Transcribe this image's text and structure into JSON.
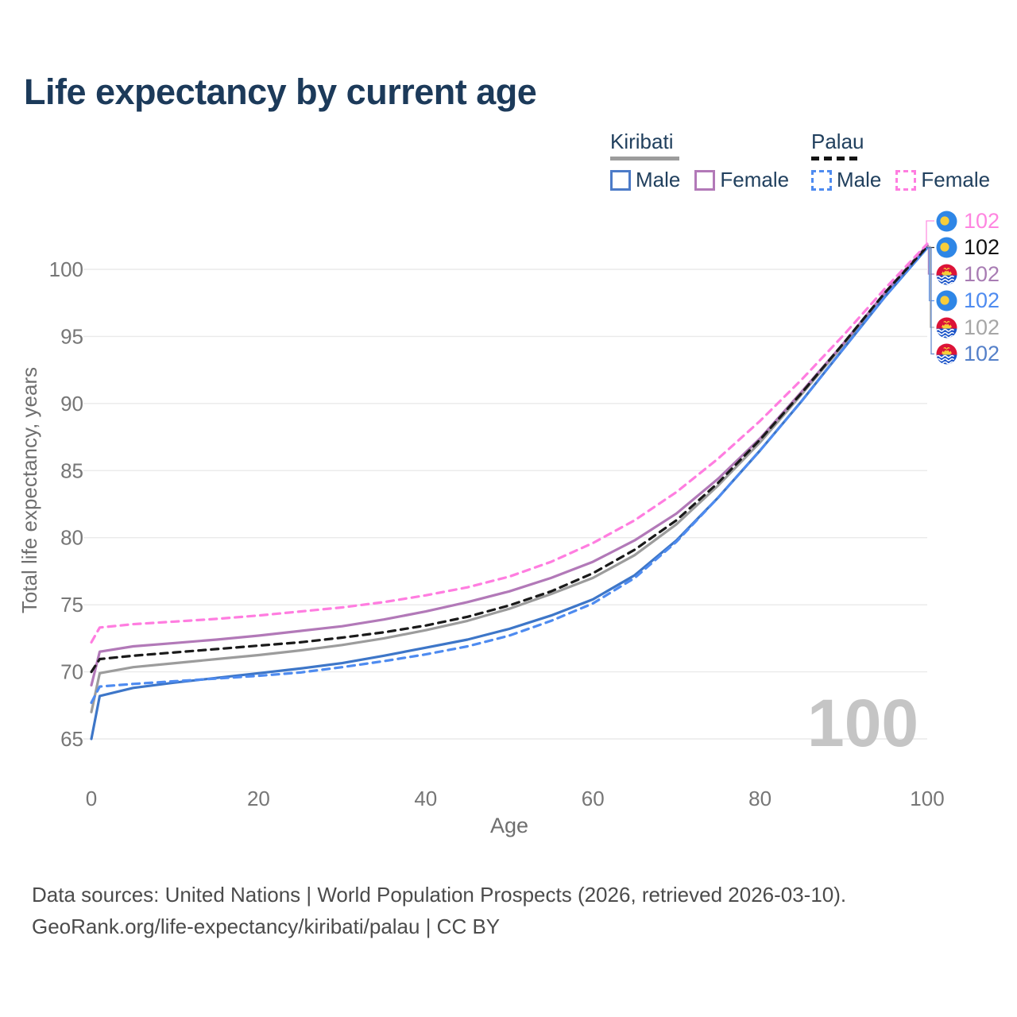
{
  "title": "Life expectancy by current age",
  "legend": {
    "groups": [
      {
        "name": "Kiribati",
        "line_style": "solid",
        "underline_color": "#9c9c9c",
        "items": [
          {
            "label": "Male",
            "color": "#4c7bc8"
          },
          {
            "label": "Female",
            "color": "#b279b8"
          }
        ]
      },
      {
        "name": "Palau",
        "line_style": "dashed",
        "underline_color": "#141414",
        "items": [
          {
            "label": "Male",
            "color": "#4e8bf0"
          },
          {
            "label": "Female",
            "color": "#ff7de0"
          }
        ]
      }
    ]
  },
  "chart_data": {
    "type": "line",
    "title": "Life expectancy by current age",
    "xlabel": "Age",
    "ylabel": "Total life expectancy, years",
    "x_ticks": [
      0,
      20,
      40,
      60,
      80,
      100
    ],
    "y_ticks": [
      65,
      70,
      75,
      80,
      85,
      90,
      95,
      100
    ],
    "xlim": [
      0,
      100
    ],
    "ylim": [
      63.5,
      103
    ],
    "grid": "horizontal",
    "legend_position": "top-right",
    "current_age_watermark": "100",
    "x": [
      0,
      1,
      5,
      10,
      15,
      20,
      25,
      30,
      35,
      40,
      45,
      50,
      55,
      60,
      65,
      70,
      75,
      80,
      85,
      90,
      95,
      100
    ],
    "series": [
      {
        "id": "kiribati-all",
        "name": "Kiribati",
        "country": "Kiribati",
        "sex": "All",
        "color": "#9c9c9c",
        "dash": false,
        "values": [
          67.0,
          69.9,
          70.35,
          70.65,
          70.95,
          71.25,
          71.6,
          72.0,
          72.5,
          73.1,
          73.8,
          74.7,
          75.8,
          77.0,
          78.7,
          81.0,
          83.9,
          87.1,
          90.7,
          94.4,
          98.2,
          101.7
        ]
      },
      {
        "id": "kiribati-female",
        "name": "Kiribati Female",
        "country": "Kiribati",
        "sex": "Female",
        "color": "#b279b8",
        "dash": false,
        "values": [
          69.0,
          71.5,
          71.9,
          72.15,
          72.4,
          72.7,
          73.05,
          73.4,
          73.9,
          74.5,
          75.2,
          76.0,
          77.0,
          78.2,
          79.8,
          81.8,
          84.4,
          87.4,
          90.9,
          94.5,
          98.3,
          101.8
        ]
      },
      {
        "id": "kiribati-male",
        "name": "Kiribati Male",
        "country": "Kiribati",
        "sex": "Male",
        "color": "#3d76c8",
        "dash": false,
        "values": [
          65.0,
          68.2,
          68.8,
          69.2,
          69.55,
          69.9,
          70.25,
          70.65,
          71.2,
          71.8,
          72.4,
          73.2,
          74.2,
          75.4,
          77.2,
          79.8,
          83.0,
          86.5,
          90.2,
          94.1,
          98.0,
          101.6
        ]
      },
      {
        "id": "palau-male",
        "name": "Palau Male",
        "country": "Palau",
        "sex": "Male",
        "color": "#4e8bf0",
        "dash": true,
        "values": [
          67.7,
          68.9,
          69.1,
          69.3,
          69.5,
          69.7,
          69.95,
          70.35,
          70.8,
          71.3,
          71.9,
          72.7,
          73.8,
          75.1,
          77.0,
          79.7,
          83.0,
          86.5,
          90.2,
          94.1,
          98.0,
          101.6
        ]
      },
      {
        "id": "palau-all",
        "name": "Palau",
        "country": "Palau",
        "sex": "All",
        "color": "#1a1a1a",
        "dash": true,
        "values": [
          70.0,
          70.95,
          71.2,
          71.45,
          71.7,
          71.95,
          72.2,
          72.55,
          72.95,
          73.45,
          74.1,
          74.95,
          76.0,
          77.35,
          79.1,
          81.3,
          84.1,
          87.3,
          90.8,
          94.5,
          98.3,
          101.7
        ]
      },
      {
        "id": "palau-female",
        "name": "Palau Female",
        "country": "Palau",
        "sex": "Female",
        "color": "#ff7de0",
        "dash": true,
        "values": [
          72.2,
          73.3,
          73.55,
          73.75,
          73.95,
          74.2,
          74.5,
          74.8,
          75.2,
          75.7,
          76.3,
          77.1,
          78.2,
          79.6,
          81.3,
          83.4,
          85.9,
          88.7,
          91.8,
          95.1,
          98.6,
          101.9
        ]
      }
    ],
    "end_labels": [
      {
        "series_id": "palau-female",
        "flag": "palau",
        "value": "102",
        "color": "#ff85e0"
      },
      {
        "series_id": "palau-all",
        "flag": "palau",
        "value": "102",
        "color": "#111111"
      },
      {
        "series_id": "kiribati-female",
        "flag": "kiribati",
        "value": "102",
        "color": "#a87cb3"
      },
      {
        "series_id": "palau-male",
        "flag": "palau",
        "value": "102",
        "color": "#4e8bf0"
      },
      {
        "series_id": "kiribati-all",
        "flag": "kiribati",
        "value": "102",
        "color": "#a6a6a6"
      },
      {
        "series_id": "kiribati-male",
        "flag": "kiribati",
        "value": "102",
        "color": "#5580c9"
      }
    ]
  },
  "footer": {
    "line1": "Data sources: United Nations | World Population Prospects (2026, retrieved 2026-03-10).",
    "line2": "GeoRank.org/life-expectancy/kiribati/palau | CC BY"
  }
}
